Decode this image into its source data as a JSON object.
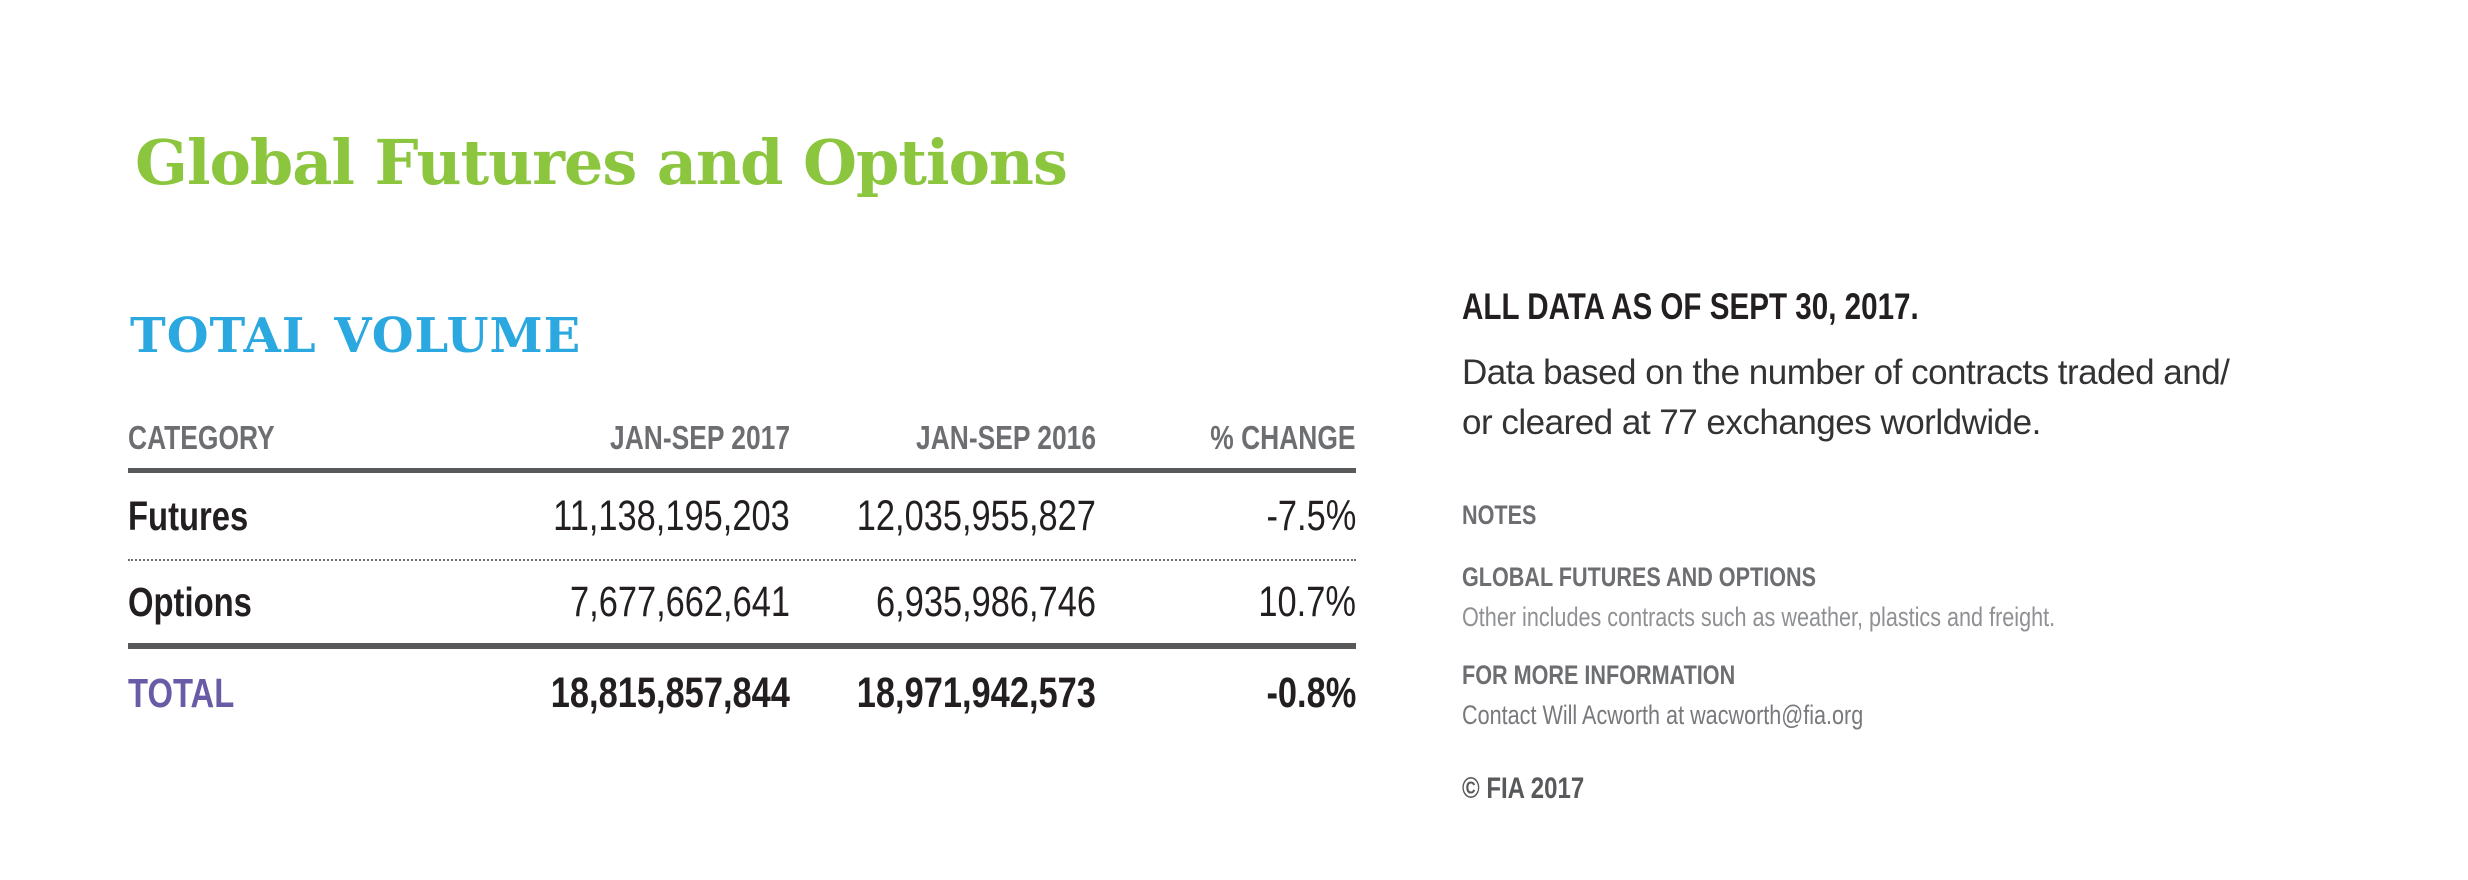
{
  "page": {
    "title": "Global Futures and Options",
    "accent_green": "#8cc63f",
    "accent_blue": "#2ba8e0",
    "accent_purple": "#6a5ba6"
  },
  "volume_section": {
    "heading": "TOTAL VOLUME",
    "table": {
      "columns": [
        "CATEGORY",
        "JAN-SEP 2017",
        "JAN-SEP 2016",
        "% CHANGE"
      ],
      "rows": [
        {
          "label": "Futures",
          "values": [
            "11,138,195,203",
            "12,035,955,827",
            "-7.5%"
          ]
        },
        {
          "label": "Options",
          "values": [
            "7,677,662,641",
            "6,935,986,746",
            "10.7%"
          ]
        }
      ],
      "total": {
        "label": "TOTAL",
        "values": [
          "18,815,857,844",
          "18,971,942,573",
          "-0.8%"
        ]
      }
    }
  },
  "aside": {
    "as_of": "ALL DATA AS OF SEPT 30, 2017.",
    "description_lines": [
      "Data based on the number of contracts traded and/",
      "or cleared at 77 exchanges worldwide."
    ],
    "notes_label": "NOTES",
    "note": {
      "heading": "GLOBAL FUTURES AND OPTIONS",
      "body": "Other includes contracts such as weather, plastics and freight."
    },
    "more_info": {
      "heading": "FOR MORE INFORMATION",
      "body": "Contact Will Acworth at wacworth@fia.org"
    },
    "copyright": "© FIA 2017"
  }
}
